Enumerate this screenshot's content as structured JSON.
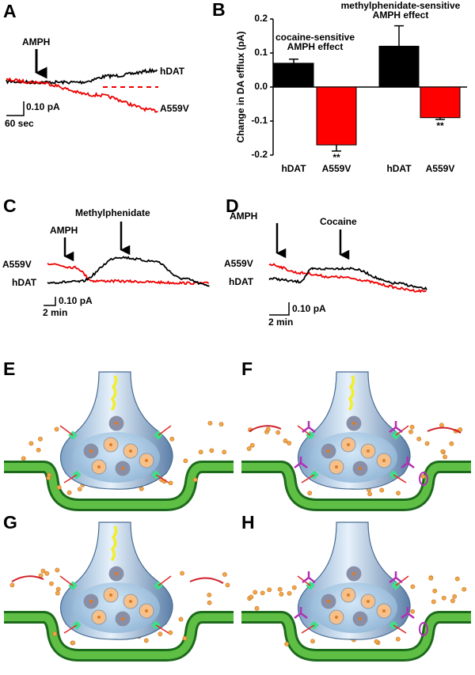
{
  "panels": {
    "A": {
      "label": "A",
      "arrow": "AMPH",
      "trace1": "hDAT",
      "trace2": "A559V",
      "scale_y": "0.10 pA",
      "scale_x": "60 sec"
    },
    "C": {
      "label": "C",
      "arrow1": "AMPH",
      "arrow2": "Methylphenidate",
      "trace1": "A559V",
      "trace2": "hDAT",
      "scale_y": "0.10 pA",
      "scale_x": "2 min"
    },
    "D": {
      "label": "D",
      "arrow1": "AMPH",
      "arrow2": "Cocaine",
      "trace1": "A559V",
      "trace2": "hDAT",
      "scale_y": "0.10 pA",
      "scale_x": "2 min"
    },
    "E": "E",
    "F": "F",
    "G": "G",
    "H": "H"
  },
  "chart_data": {
    "type": "bar",
    "panel_label": "B",
    "ylabel": "Change in DA efflux (pA)",
    "categories": [
      "hDAT",
      "A559V",
      "hDAT",
      "A559V"
    ],
    "values": [
      0.07,
      -0.17,
      0.12,
      -0.09
    ],
    "errors": [
      0.012,
      0.018,
      0.06,
      0.005
    ],
    "colors": [
      "#000000",
      "#ff0000",
      "#000000",
      "#ff0000"
    ],
    "significance": [
      null,
      "**",
      null,
      "**"
    ],
    "annotations": [
      [
        "cocaine-sensitive",
        "AMPH effect"
      ],
      [
        "methylphenidate-sensitive",
        "AMPH effect"
      ]
    ],
    "ylim": [
      -0.2,
      0.2
    ],
    "yticks": [
      -0.2,
      -0.1,
      {
        "value": 0,
        "label": "0.0"
      },
      0.1,
      0.2
    ]
  }
}
